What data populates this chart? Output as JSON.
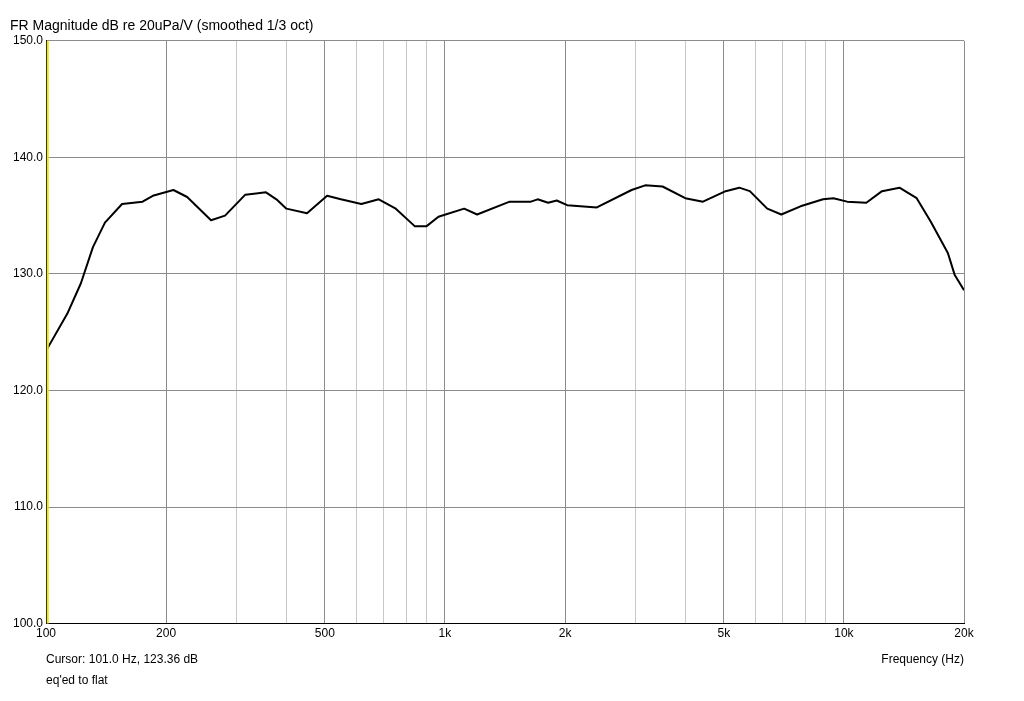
{
  "chart_data": {
    "type": "line",
    "title": "FR Magnitude dB re 20uPa/V (smoothed 1/3 oct)",
    "xlabel": "Frequency (Hz)",
    "x": [
      100,
      113.1,
      122.3,
      131.1,
      140.5,
      155.1,
      174.6,
      185.2,
      208.6,
      225.8,
      259.2,
      281,
      315.9,
      355.9,
      378,
      400.5,
      451,
      506.5,
      548.4,
      617.1,
      682.4,
      752.8,
      839.6,
      899.6,
      963.2,
      1117,
      1204,
      1453,
      1642,
      1707,
      1814,
      1906,
      2025,
      2403,
      2936,
      3176,
      3511,
      4003,
      4433,
      5053,
      5466,
      5810,
      6426,
      6967,
      7784,
      8868,
      9412,
      10190,
      11380,
      12460,
      13780,
      15220,
      16500,
      18220,
      18960,
      20000
    ],
    "series": [
      {
        "color": "#000000",
        "values": [
          123.4,
          126.6,
          129.2,
          132.3,
          134.4,
          136,
          136.2,
          136.7,
          137.2,
          136.6,
          134.6,
          135,
          136.8,
          137,
          136.4,
          135.6,
          135.2,
          136.7,
          136.4,
          136,
          136.4,
          135.6,
          134.1,
          134.1,
          134.9,
          135.6,
          135.1,
          136.2,
          136.2,
          136.4,
          136.1,
          136.3,
          135.9,
          135.7,
          137.2,
          137.6,
          137.5,
          136.5,
          136.2,
          137.1,
          137.4,
          137.1,
          135.6,
          135.1,
          135.8,
          136.4,
          136.5,
          136.2,
          136.1,
          137.1,
          137.4,
          136.5,
          134.5,
          131.8,
          129.9,
          128.6
        ]
      }
    ],
    "xlim": [
      100,
      20000
    ],
    "ylim": [
      100,
      150
    ],
    "log": "x",
    "grid": true,
    "legend": false,
    "marker": "none",
    "line_style": "solid",
    "xticks": [
      100,
      200,
      {
        "value": 300,
        "label": null
      },
      {
        "value": 400,
        "label": null
      },
      500,
      {
        "value": 600,
        "label": null
      },
      {
        "value": 700,
        "label": null
      },
      {
        "value": 800,
        "label": null
      },
      {
        "value": 900,
        "label": null
      },
      {
        "value": 1000,
        "label": "1k"
      },
      {
        "value": 2000,
        "label": "2k"
      },
      {
        "value": 3000,
        "label": null
      },
      {
        "value": 4000,
        "label": null
      },
      {
        "value": 5000,
        "label": "5k"
      },
      {
        "value": 6000,
        "label": null
      },
      {
        "value": 7000,
        "label": null
      },
      {
        "value": 8000,
        "label": null
      },
      {
        "value": 9000,
        "label": null
      },
      {
        "value": 10000,
        "label": "10k"
      },
      {
        "value": 20000,
        "label": "20k"
      }
    ],
    "yticks": [
      {
        "value": 100,
        "label": "100.0"
      },
      {
        "value": 110,
        "label": "110.0"
      },
      {
        "value": 120,
        "label": "120.0"
      },
      {
        "value": 130,
        "label": "130.0"
      },
      {
        "value": 140,
        "label": "140.0"
      },
      {
        "value": 150,
        "label": "150.0"
      }
    ],
    "ref_lines": [
      {
        "axis": "x",
        "value": 101,
        "label": null,
        "color": "#e8e800"
      }
    ],
    "annotations": [
      "Cursor: 101.0 Hz, 123.36 dB",
      "eq'ed to flat"
    ]
  }
}
